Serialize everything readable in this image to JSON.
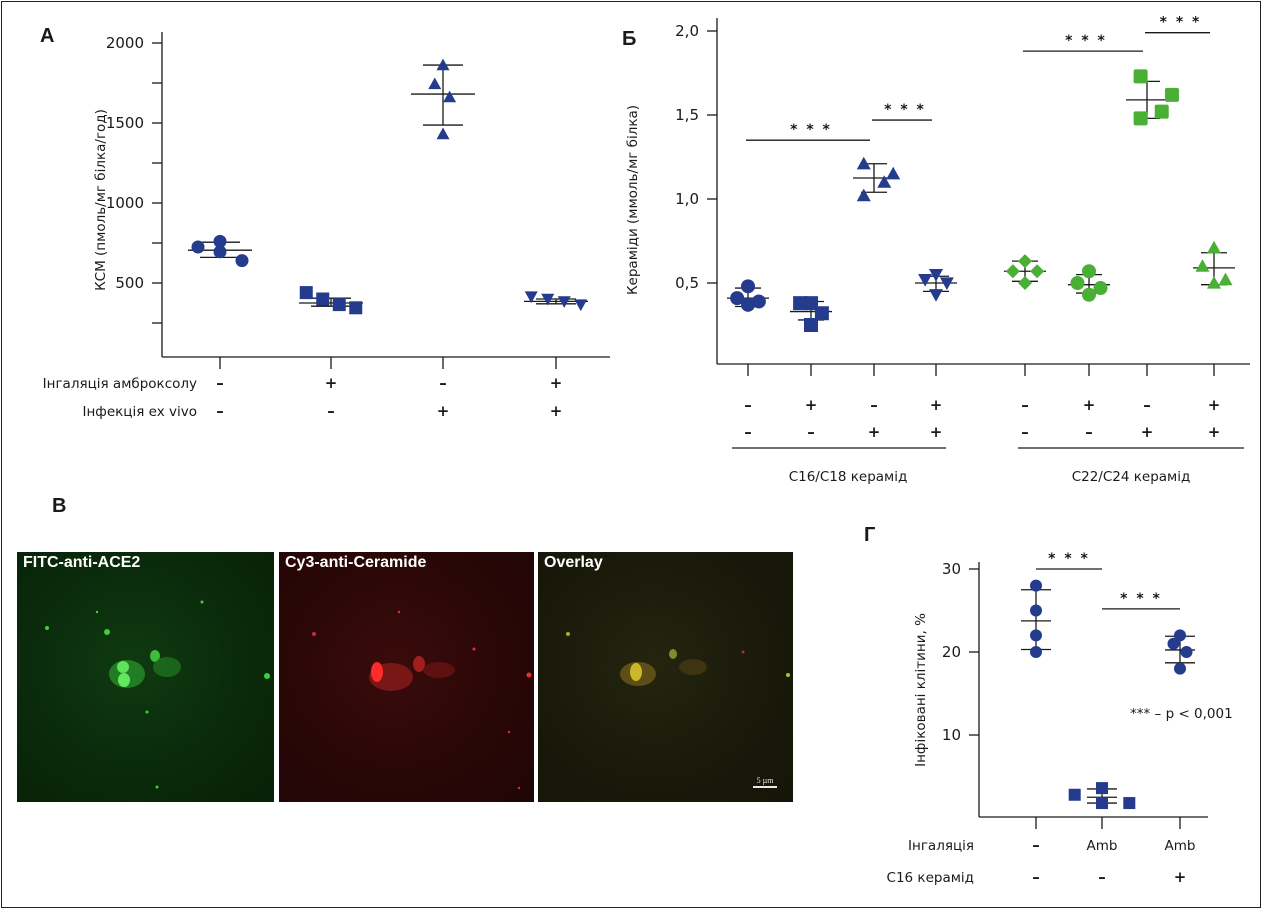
{
  "colors": {
    "blue": "#243b8e",
    "green": "#4aaf35",
    "axis": "#1a1a1a"
  },
  "chart_data": [
    {
      "id": "A",
      "panel_label": "А",
      "type": "scatter",
      "title": "",
      "ylabel": "КСМ (пмоль/мг білка/год)",
      "ylim": [
        40,
        2000
      ],
      "yticks": [
        2000,
        1500,
        1000,
        500
      ],
      "ytick_labels": [
        "2000",
        "1500",
        "1000",
        "500"
      ],
      "yminor": [
        1750,
        1250,
        750,
        250
      ],
      "row_labels": [
        "Інгаляція амброксолу",
        "Інфекція ex vivo"
      ],
      "groups": [
        {
          "marker": "circle",
          "color": "blue",
          "rows": [
            "–",
            "–"
          ],
          "points": [
            [
              -0.4,
              725
            ],
            [
              0,
              760
            ],
            [
              0,
              695
            ],
            [
              0.4,
              640
            ]
          ],
          "mean": 705,
          "sd": [
            660,
            755
          ]
        },
        {
          "marker": "square",
          "color": "blue",
          "rows": [
            "+",
            "–"
          ],
          "points": [
            [
              -0.45,
              440
            ],
            [
              -0.15,
              400
            ],
            [
              0.15,
              365
            ],
            [
              0.45,
              345
            ]
          ],
          "mean": 375,
          "sd": [
            355,
            405
          ]
        },
        {
          "marker": "triangle-up",
          "color": "blue",
          "rows": [
            "–",
            "+"
          ],
          "points": [
            [
              0,
              1862
            ],
            [
              -0.15,
              1744
            ],
            [
              0.12,
              1662
            ],
            [
              0,
              1431
            ]
          ],
          "mean": 1681,
          "sd": [
            1487,
            1862
          ]
        },
        {
          "marker": "triangle-down",
          "color": "blue",
          "rows": [
            "+",
            "+"
          ],
          "points": [
            [
              -0.45,
              415
            ],
            [
              -0.15,
              400
            ],
            [
              0.15,
              385
            ],
            [
              0.45,
              365
            ]
          ],
          "mean": 385,
          "sd": [
            370,
            400
          ]
        }
      ]
    },
    {
      "id": "B",
      "panel_label": "Б",
      "type": "scatter",
      "title": "",
      "ylabel": "Кераміди (ммоль/мг білка)",
      "ylim": [
        0.02,
        2.0
      ],
      "yticks": [
        2.0,
        1.5,
        1.0,
        0.5
      ],
      "ytick_labels": [
        "2,0",
        "1,5",
        "1,0",
        "0,5"
      ],
      "group_labels": [
        "C16/C18 керамід",
        "C22/C24 керамід"
      ],
      "groups": [
        {
          "marker": "circle",
          "color": "blue",
          "rows": [
            "–",
            "–"
          ],
          "points": [
            [
              0,
              0.48
            ],
            [
              -0.17,
              0.41
            ],
            [
              0.17,
              0.39
            ],
            [
              0,
              0.37
            ]
          ],
          "mean": 0.41,
          "sd": [
            0.36,
            0.47
          ]
        },
        {
          "marker": "square",
          "color": "blue",
          "rows": [
            "+",
            "–"
          ],
          "points": [
            [
              -0.17,
              0.38
            ],
            [
              0,
              0.38
            ],
            [
              0.17,
              0.32
            ],
            [
              0,
              0.25
            ]
          ],
          "mean": 0.33,
          "sd": [
            0.28,
            0.39
          ]
        },
        {
          "marker": "triangle-up",
          "color": "blue",
          "rows": [
            "–",
            "+"
          ],
          "points": [
            [
              -0.16,
              1.21
            ],
            [
              0.3,
              1.15
            ],
            [
              0.16,
              1.1
            ],
            [
              -0.16,
              1.02
            ]
          ],
          "mean": 1.125,
          "sd": [
            1.04,
            1.21
          ]
        },
        {
          "marker": "triangle-down",
          "color": "blue",
          "rows": [
            "+",
            "+"
          ],
          "points": [
            [
              -0.17,
              0.52
            ],
            [
              0,
              0.55
            ],
            [
              0.17,
              0.5
            ],
            [
              0,
              0.43
            ]
          ],
          "mean": 0.5,
          "sd": [
            0.45,
            0.54
          ]
        },
        {
          "marker": "diamond",
          "color": "green",
          "rows": [
            "–",
            "–"
          ],
          "points": [
            [
              0,
              0.63
            ],
            [
              -0.19,
              0.57
            ],
            [
              0.19,
              0.57
            ],
            [
              0,
              0.5
            ]
          ],
          "mean": 0.57,
          "sd": [
            0.51,
            0.63
          ]
        },
        {
          "marker": "circle",
          "color": "green",
          "rows": [
            "+",
            "–"
          ],
          "points": [
            [
              0,
              0.57
            ],
            [
              -0.18,
              0.5
            ],
            [
              0.18,
              0.47
            ],
            [
              0,
              0.43
            ]
          ],
          "mean": 0.49,
          "sd": [
            0.44,
            0.55
          ]
        },
        {
          "marker": "square",
          "color": "green",
          "rows": [
            "–",
            "+"
          ],
          "points": [
            [
              -0.1,
              1.73
            ],
            [
              0.39,
              1.62
            ],
            [
              0.23,
              1.52
            ],
            [
              -0.1,
              1.48
            ]
          ],
          "mean": 1.59,
          "sd": [
            1.48,
            1.7
          ]
        },
        {
          "marker": "triangle-up",
          "color": "green",
          "rows": [
            "+",
            "+"
          ],
          "points": [
            [
              0,
              0.71
            ],
            [
              -0.18,
              0.6
            ],
            [
              0.18,
              0.52
            ],
            [
              0,
              0.5
            ]
          ],
          "mean": 0.59,
          "sd": [
            0.49,
            0.68
          ]
        }
      ],
      "significance": [
        {
          "from": 0,
          "to": 2,
          "y": 1.35,
          "label": "***"
        },
        {
          "from": 2,
          "to": 3,
          "y": 1.47,
          "label": "***"
        },
        {
          "from": 4,
          "to": 6,
          "y": 1.88,
          "label": "***"
        },
        {
          "from": 6,
          "to": 7,
          "y": 1.99,
          "label": "***"
        }
      ]
    },
    {
      "id": "D",
      "panel_label": "Г",
      "type": "scatter",
      "title": "",
      "ylabel": "Інфіковані клітини, %",
      "ylim": [
        0,
        31
      ],
      "yticks": [
        30,
        20,
        10
      ],
      "ytick_labels": [
        "30",
        "20",
        "10"
      ],
      "row_labels": [
        "Інгаляція",
        "C16 керамід"
      ],
      "groups": [
        {
          "marker": "circle",
          "color": "blue",
          "rows": [
            "–",
            "–"
          ],
          "points": [
            [
              0,
              28
            ],
            [
              0,
              25
            ],
            [
              0,
              22
            ],
            [
              0,
              20
            ]
          ],
          "mean": 23.75,
          "sd": [
            20.3,
            27.5
          ]
        },
        {
          "marker": "square",
          "color": "blue",
          "rows": [
            "Amb",
            "–"
          ],
          "points": [
            [
              -0.42,
              2.8
            ],
            [
              0,
              3.6
            ],
            [
              0,
              1.8
            ],
            [
              0.42,
              1.8
            ]
          ],
          "mean": 2.5,
          "sd": [
            1.8,
            3.5
          ]
        },
        {
          "marker": "circle",
          "color": "blue",
          "rows": [
            "Amb",
            "+"
          ],
          "points": [
            [
              0,
              22
            ],
            [
              -0.1,
              21
            ],
            [
              0.1,
              20
            ],
            [
              0,
              18
            ]
          ],
          "mean": 20.25,
          "sd": [
            18.7,
            21.9
          ]
        }
      ],
      "significance": [
        {
          "from": 0,
          "to": 1,
          "y": 30,
          "label": "***"
        },
        {
          "from": 1,
          "to": 2,
          "y": 25.2,
          "label": "***"
        }
      ],
      "annotation": "*** – p < 0,001"
    }
  ],
  "microscopy": {
    "panel_label": "В",
    "panels": [
      {
        "title": "FITC-anti-ACE2",
        "channel": "green"
      },
      {
        "title": "Cy3-anti-Ceramide",
        "channel": "red"
      },
      {
        "title": "Overlay",
        "channel": "overlay"
      }
    ],
    "scale_bar": "5 µm"
  }
}
